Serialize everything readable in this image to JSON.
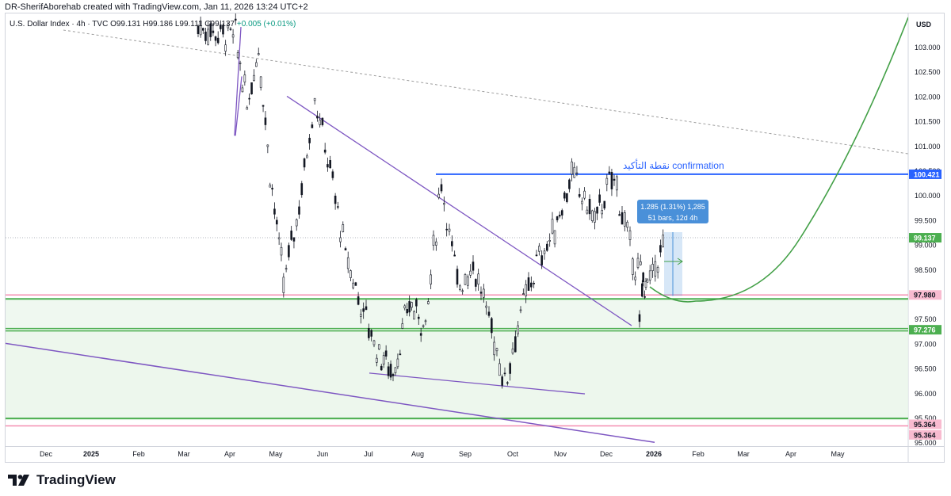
{
  "header": {
    "created_line": "DR-SherifAborehab created with TradingView.com, Jan 11, 2026 13:24 UTC+2"
  },
  "legend": {
    "symbol": "U.S. Dollar Index · 4h · TVC",
    "open": "O99.131",
    "high": "H99.186",
    "low": "L99.111",
    "close": "C99.137",
    "change": "+0.005 (+0.01%)"
  },
  "brand": {
    "name": "TradingView"
  },
  "colors": {
    "up": "#089981",
    "down": "#f23645",
    "candle": "#131722",
    "support": "#4caf50",
    "zone_fill": "#e8f5e9",
    "pink": "#f48fb1",
    "confirm": "#2962ff",
    "trend": "#7e57c2",
    "curve": "#43a047",
    "measure": "#4a90d9",
    "dashed": "#9e9e9e"
  },
  "chart_data": {
    "type": "candlestick",
    "title": "U.S. Dollar Index · 4h · TVC",
    "currency": "USD",
    "x_ticks": [
      "Dec",
      "2025",
      "Feb",
      "Mar",
      "Apr",
      "May",
      "Jun",
      "Jul",
      "Aug",
      "Sep",
      "Oct",
      "Nov",
      "Dec",
      "2026",
      "Feb",
      "Mar",
      "Apr",
      "May"
    ],
    "y_ticks": [
      "103.000",
      "102.500",
      "102.000",
      "101.500",
      "101.000",
      "100.500",
      "100.000",
      "99.500",
      "99.000",
      "98.500",
      "98.000",
      "97.500",
      "97.000",
      "96.500",
      "96.000",
      "95.500",
      "95.000"
    ],
    "ylim": [
      95.0,
      103.5
    ],
    "price_path": [
      {
        "x": "Mar",
        "y": 103.4
      },
      {
        "x": "Apr",
        "y": 103.2
      },
      {
        "x": "Apr",
        "y": 101.8
      },
      {
        "x": "Apr",
        "y": 103.0
      },
      {
        "x": "Apr",
        "y": 100.5
      },
      {
        "x": "May",
        "y": 98.2
      },
      {
        "x": "May",
        "y": 99.8
      },
      {
        "x": "May",
        "y": 102.0
      },
      {
        "x": "Jun",
        "y": 100.5
      },
      {
        "x": "Jun",
        "y": 98.8
      },
      {
        "x": "Jun",
        "y": 97.8
      },
      {
        "x": "Jul",
        "y": 96.9
      },
      {
        "x": "Jul",
        "y": 96.4
      },
      {
        "x": "Jul",
        "y": 97.8
      },
      {
        "x": "Aug",
        "y": 97.4
      },
      {
        "x": "Aug",
        "y": 100.3
      },
      {
        "x": "Aug",
        "y": 98.2
      },
      {
        "x": "Sep",
        "y": 98.6
      },
      {
        "x": "Sep",
        "y": 97.5
      },
      {
        "x": "Sep",
        "y": 96.2
      },
      {
        "x": "Oct",
        "y": 97.6
      },
      {
        "x": "Oct",
        "y": 98.6
      },
      {
        "x": "Oct",
        "y": 99.2
      },
      {
        "x": "Nov",
        "y": 100.4
      },
      {
        "x": "Nov",
        "y": 99.5
      },
      {
        "x": "Dec",
        "y": 100.4
      },
      {
        "x": "Dec",
        "y": 98.9
      },
      {
        "x": "Dec",
        "y": 98.1
      },
      {
        "x": "2026",
        "y": 97.8
      },
      {
        "x": "2026",
        "y": 98.4
      },
      {
        "x": "2026",
        "y": 99.137
      }
    ],
    "price_labels": [
      {
        "text": "USD",
        "type": "header"
      },
      {
        "text": "100.421",
        "y": 100.421,
        "bg": "#2962ff",
        "fg": "#ffffff"
      },
      {
        "text": "99.137",
        "y": 99.137,
        "bg": "#4caf50",
        "fg": "#ffffff"
      },
      {
        "text": "97.980",
        "y": 97.98,
        "bg": "#f8bbd0",
        "fg": "#131722"
      },
      {
        "text": "97.276",
        "y": 97.276,
        "bg": "#4caf50",
        "fg": "#ffffff"
      },
      {
        "text": "95.364",
        "y": 95.364,
        "bg": "#f8bbd0",
        "fg": "#131722"
      },
      {
        "text": "95.364",
        "y": 95.15,
        "bg": "#f8bbd0",
        "fg": "#131722"
      }
    ],
    "annotations": {
      "confirmation": "نقطة التأكيد confirmation",
      "measure_line1": "1.285 (1.31%) 1,285",
      "measure_line2": "51 bars, 12d 4h"
    },
    "levels": [
      {
        "name": "confirmation",
        "y": 100.421
      },
      {
        "name": "support-upper",
        "y": 97.9
      },
      {
        "name": "support-mid",
        "y": 97.276
      },
      {
        "name": "support-lower",
        "y": 95.45
      }
    ]
  }
}
